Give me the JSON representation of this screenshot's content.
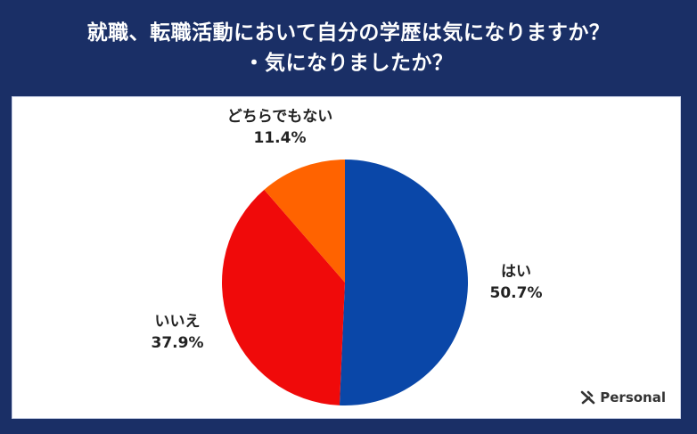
{
  "title": {
    "line1": "就職、転職活動において自分の学歴は気になりますか？",
    "line2": "・気になりましたか？"
  },
  "brand": {
    "icon": "personal-logo-icon",
    "name": "Personal"
  },
  "colors": {
    "background": "#1a2f66",
    "panel": "#ffffff",
    "hai": "#0a47a8",
    "iie": "#f00a0a",
    "dochira": "#ff6300"
  },
  "labels": {
    "hai": {
      "name": "はい",
      "value": "50.7%"
    },
    "iie": {
      "name": "いいえ",
      "value": "37.9%"
    },
    "dochira": {
      "name": "どちらでもない",
      "value": "11.4%"
    }
  },
  "chart_data": {
    "type": "pie",
    "title": "就職、転職活動において自分の学歴は気になりますか？・気になりましたか？",
    "categories": [
      "はい",
      "いいえ",
      "どちらでもない"
    ],
    "values": [
      50.7,
      37.9,
      11.4
    ],
    "unit": "%",
    "colors": [
      "#0a47a8",
      "#f00a0a",
      "#ff6300"
    ],
    "start_angle": "12 o'clock",
    "direction": "clockwise",
    "legend": "none (direct labels)"
  }
}
